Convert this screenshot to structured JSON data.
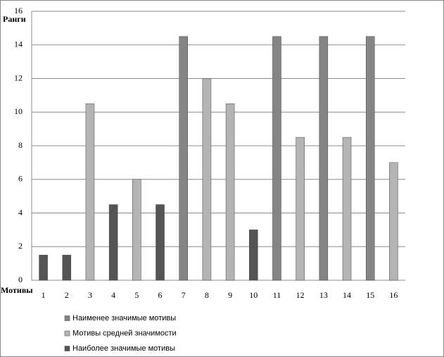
{
  "chart_data": {
    "type": "bar",
    "y_label": "Ранги",
    "x_label": "Мотивы",
    "categories": [
      "1",
      "2",
      "3",
      "4",
      "5",
      "6",
      "7",
      "8",
      "9",
      "10",
      "11",
      "12",
      "13",
      "14",
      "15",
      "16"
    ],
    "series": [
      {
        "name": "Наименее значимые мотивы",
        "color": "#858585",
        "values": [
          null,
          null,
          null,
          null,
          null,
          null,
          14.5,
          null,
          null,
          null,
          14.5,
          null,
          14.5,
          null,
          14.5,
          null
        ]
      },
      {
        "name": "Мотивы средней значимости",
        "color": "#b4b4b4",
        "values": [
          null,
          null,
          10.5,
          null,
          6,
          null,
          null,
          12,
          10.5,
          null,
          null,
          8.5,
          null,
          8.5,
          null,
          7
        ]
      },
      {
        "name": "Наиболее значимые мотивы",
        "color": "#545454",
        "values": [
          1.5,
          1.5,
          null,
          4.5,
          null,
          4.5,
          null,
          null,
          null,
          3,
          null,
          null,
          null,
          null,
          null,
          null
        ]
      }
    ],
    "ylim": [
      0,
      16
    ],
    "yticks": [
      0,
      2,
      4,
      6,
      8,
      10,
      12,
      14,
      16
    ],
    "grid": true,
    "legend": "bottom"
  }
}
